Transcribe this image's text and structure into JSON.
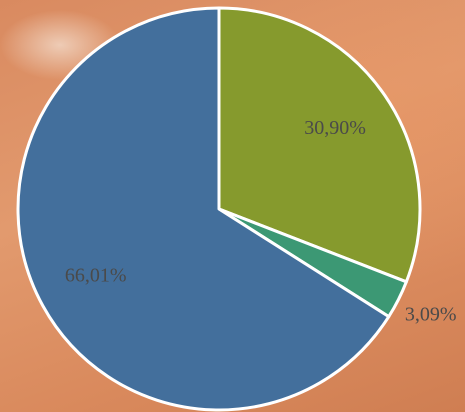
{
  "chart_data": {
    "type": "pie",
    "categories": [
      null,
      null,
      null
    ],
    "values": [
      30.9,
      3.09,
      66.01
    ],
    "value_labels": [
      "30,90%",
      "3,09%",
      "66,01%"
    ],
    "colors": [
      "#869a2d",
      "#3c9874",
      "#436f9c"
    ]
  }
}
